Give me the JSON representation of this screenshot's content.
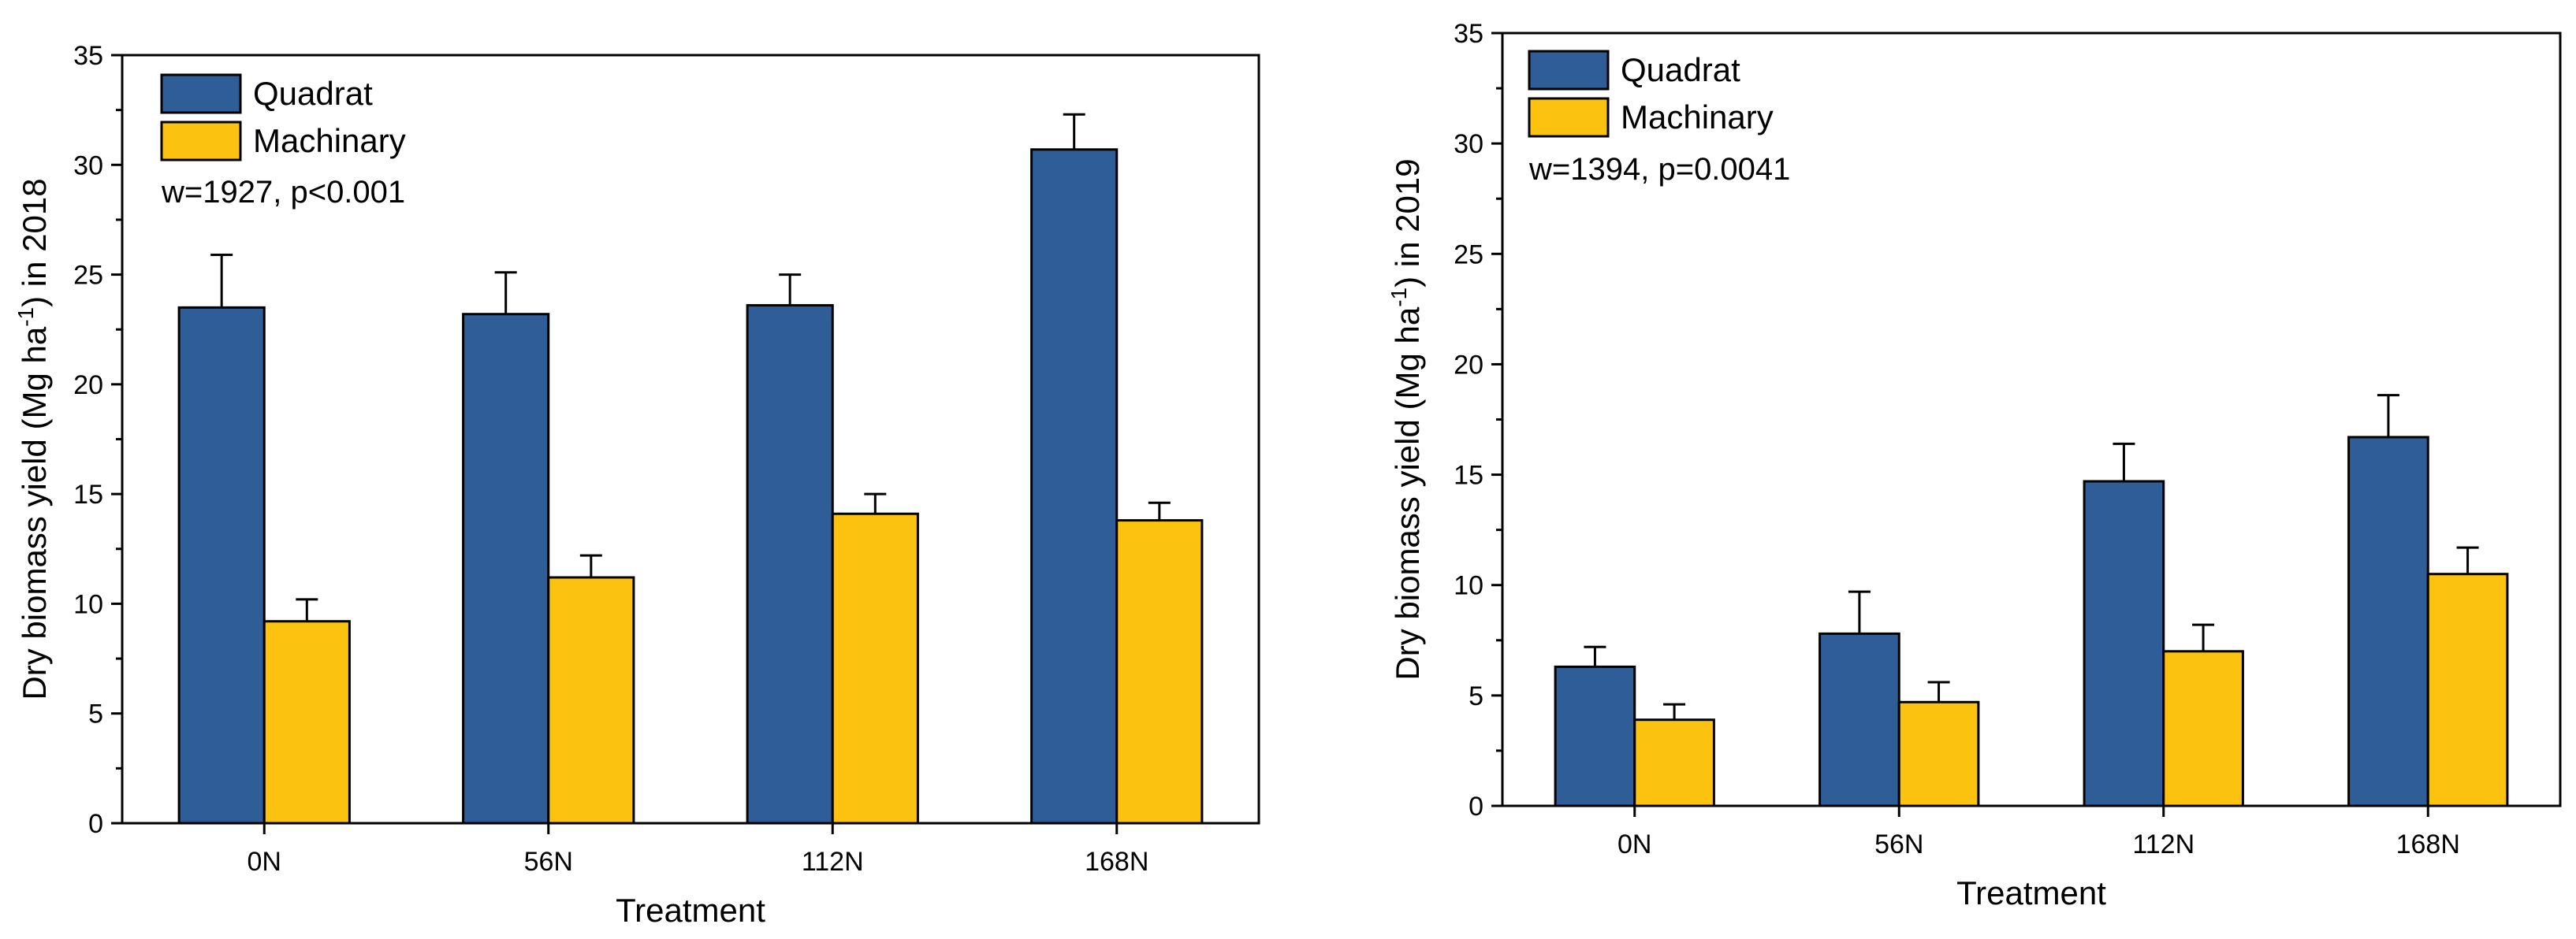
{
  "chart_data": [
    {
      "type": "bar",
      "title": "",
      "xlabel": "Treatment",
      "ylabel": "Dry biomass yield (Mg ha-1) in 2018",
      "ylabel_parts": {
        "before": "Dry biomass yield (Mg ha",
        "sup": "-1",
        "after": ") in 2018"
      },
      "annotation": "w=1927, p<0.001",
      "categories": [
        "0N",
        "56N",
        "112N",
        "168N"
      ],
      "ylim": [
        0,
        35
      ],
      "yticks": [
        "0",
        "5",
        "10",
        "15",
        "20",
        "25",
        "30",
        "35"
      ],
      "series": [
        {
          "name": "Quadrat",
          "color": "#2E5D98",
          "values": [
            23.5,
            23.2,
            23.6,
            30.7
          ],
          "errors": [
            2.4,
            1.9,
            1.4,
            1.6
          ]
        },
        {
          "name": "Machinary",
          "color": "#FBC30F",
          "values": [
            9.2,
            11.2,
            14.1,
            13.8
          ],
          "errors": [
            1.0,
            1.0,
            0.9,
            0.8
          ]
        }
      ]
    },
    {
      "type": "bar",
      "title": "",
      "xlabel": "Treatment",
      "ylabel": "Dry biomass yield (Mg ha-1) in 2019",
      "ylabel_parts": {
        "before": "Dry biomass yield (Mg ha",
        "sup": "-1",
        "after": ") in 2019"
      },
      "annotation": "w=1394, p=0.0041",
      "categories": [
        "0N",
        "56N",
        "112N",
        "168N"
      ],
      "ylim": [
        0,
        35
      ],
      "yticks": [
        "0",
        "5",
        "10",
        "15",
        "20",
        "25",
        "30",
        "35"
      ],
      "series": [
        {
          "name": "Quadrat",
          "color": "#2E5D98",
          "values": [
            6.3,
            7.8,
            14.7,
            16.7
          ],
          "errors": [
            0.9,
            1.9,
            1.7,
            1.9
          ]
        },
        {
          "name": "Machinary",
          "color": "#FBC30F",
          "values": [
            3.9,
            4.7,
            7.0,
            10.5
          ],
          "errors": [
            0.7,
            0.9,
            1.2,
            1.2
          ]
        }
      ]
    }
  ]
}
